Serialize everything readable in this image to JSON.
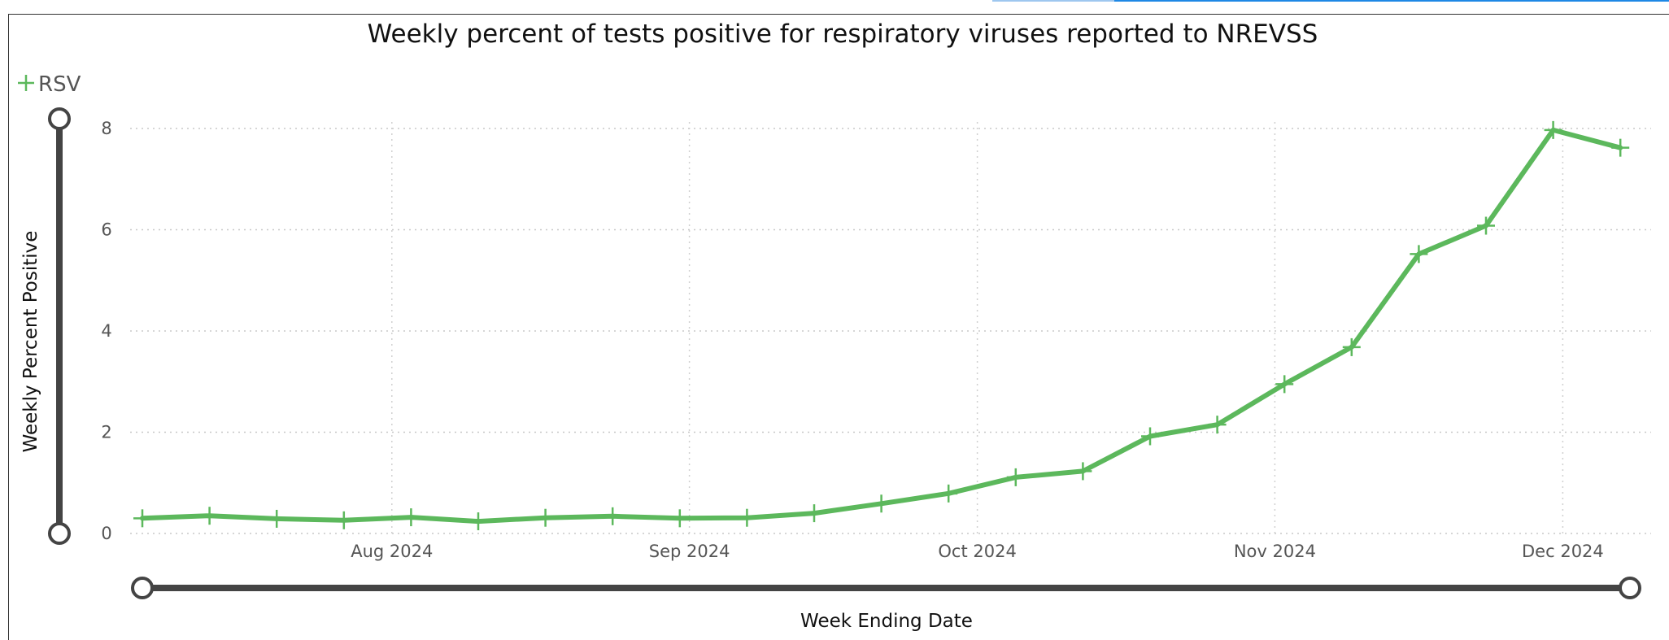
{
  "chart_data": {
    "type": "line",
    "title": "Weekly percent of tests positive for respiratory viruses reported to NREVSS",
    "xlabel": "Week Ending Date",
    "ylabel": "Weekly Percent Positive",
    "ylim": [
      0,
      8
    ],
    "yticks": [
      0,
      2,
      4,
      6,
      8
    ],
    "x_tick_labels": [
      {
        "date": "2024-08-01",
        "label": "Aug 2024"
      },
      {
        "date": "2024-09-01",
        "label": "Sep 2024"
      },
      {
        "date": "2024-10-01",
        "label": "Oct 2024"
      },
      {
        "date": "2024-11-01",
        "label": "Nov 2024"
      },
      {
        "date": "2024-12-01",
        "label": "Dec 2024"
      }
    ],
    "xlim": [
      "2024-07-06",
      "2024-12-08"
    ],
    "grid": true,
    "legend_position": "top-left",
    "series": [
      {
        "name": "RSV",
        "color": "#5cb85c",
        "marker": "plus",
        "x": [
          "2024-07-06",
          "2024-07-13",
          "2024-07-20",
          "2024-07-27",
          "2024-08-03",
          "2024-08-10",
          "2024-08-17",
          "2024-08-24",
          "2024-08-31",
          "2024-09-07",
          "2024-09-14",
          "2024-09-21",
          "2024-09-28",
          "2024-10-05",
          "2024-10-12",
          "2024-10-19",
          "2024-10-26",
          "2024-11-02",
          "2024-11-09",
          "2024-11-16",
          "2024-11-23",
          "2024-11-30",
          "2024-12-07"
        ],
        "values": [
          0.3,
          0.35,
          0.29,
          0.26,
          0.32,
          0.24,
          0.31,
          0.34,
          0.3,
          0.31,
          0.4,
          0.59,
          0.79,
          1.11,
          1.23,
          1.92,
          2.15,
          2.95,
          3.68,
          5.52,
          6.08,
          7.97,
          7.62
        ]
      }
    ]
  }
}
